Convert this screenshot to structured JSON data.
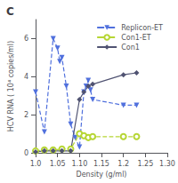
{
  "chart_data": {
    "type": "line",
    "title": "C",
    "xlabel": "Density (g/ml)",
    "ylabel": "HCV RNA ( 10⁴ copies/ml)",
    "xlim": [
      1.0,
      1.3
    ],
    "ylim": [
      0,
      7
    ],
    "xticks": [
      {
        "value": 1.0,
        "label": "1.0"
      },
      1.05,
      {
        "value": 1.1,
        "label": "1.10"
      },
      1.15,
      1.2,
      1.25,
      {
        "value": 1.3,
        "label": "1.30"
      }
    ],
    "yticks": [
      0,
      2,
      4,
      6
    ],
    "grid": false,
    "legend": "upper right",
    "series": [
      {
        "name": "Replicon-ET",
        "marker": "triangle_down",
        "line_style": "dashed",
        "x": [
          1.0,
          1.02,
          1.04,
          1.05,
          1.055,
          1.06,
          1.07,
          1.08,
          1.09,
          1.1,
          1.11,
          1.115,
          1.12,
          1.125,
          1.13,
          1.2,
          1.23
        ],
        "values": [
          3.2,
          1.1,
          6.0,
          5.5,
          4.8,
          5.0,
          3.5,
          1.5,
          0.8,
          0.3,
          3.2,
          3.5,
          3.8,
          3.3,
          2.8,
          2.5,
          2.5
        ]
      },
      {
        "name": "Con1-ET",
        "marker": "open_circle",
        "line_style": "dashed",
        "x": [
          1.0,
          1.02,
          1.04,
          1.06,
          1.08,
          1.1,
          1.11,
          1.12,
          1.13,
          1.2,
          1.23
        ],
        "values": [
          0.1,
          0.15,
          0.15,
          0.2,
          0.2,
          1.0,
          0.9,
          0.8,
          0.85,
          0.85,
          0.85
        ]
      },
      {
        "name": "Con1",
        "marker": "diamond",
        "line_style": "solid",
        "x": [
          1.0,
          1.02,
          1.04,
          1.06,
          1.08,
          1.1,
          1.11,
          1.12,
          1.13,
          1.2,
          1.23
        ],
        "values": [
          0.05,
          0.1,
          0.1,
          0.1,
          0.1,
          2.8,
          3.2,
          3.5,
          3.6,
          4.1,
          4.2
        ]
      }
    ]
  }
}
